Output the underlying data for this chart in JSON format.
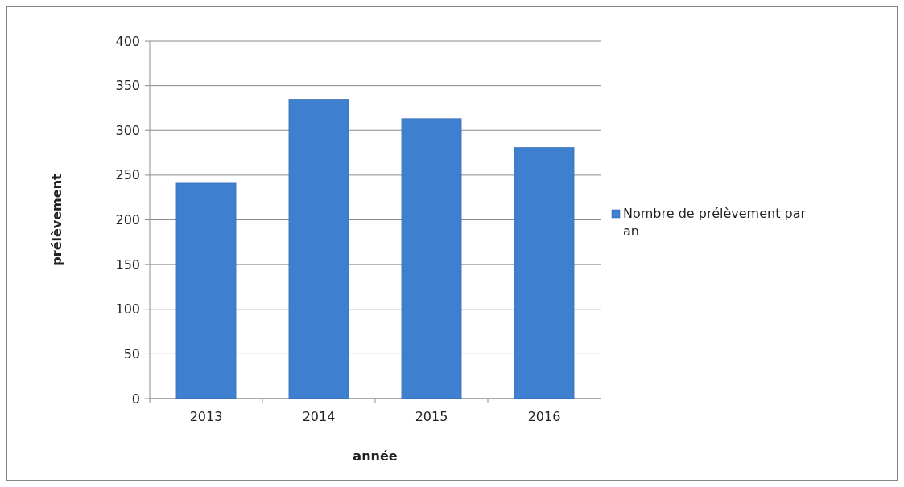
{
  "chart_data": {
    "type": "bar",
    "xlabel": "année",
    "ylabel": "prélèvement",
    "categories": [
      "2013",
      "2014",
      "2015",
      "2016"
    ],
    "series": [
      {
        "name": "Nombre de prélèvement par an",
        "color": "#3f7fcf",
        "values": [
          241,
          335,
          313,
          281
        ]
      }
    ],
    "ylim": [
      0,
      400
    ],
    "yticks": [
      0,
      50,
      100,
      150,
      200,
      250,
      300,
      350,
      400
    ],
    "grid": "y",
    "legend": "right"
  }
}
